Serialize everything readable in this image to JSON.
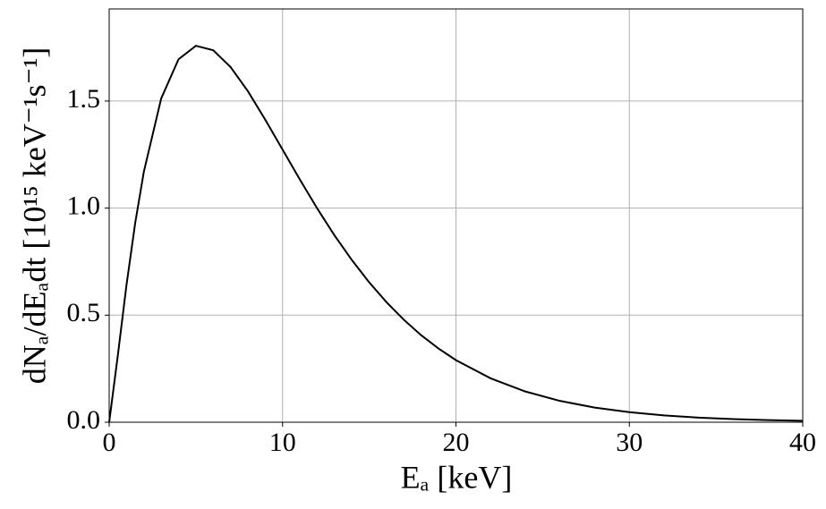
{
  "chart_data": {
    "type": "line",
    "xlabel": "Eₐ [keV]",
    "ylabel": "dNₐ/dEₐdt [10¹⁵ keV⁻¹s⁻¹]",
    "xlim": [
      0,
      40
    ],
    "xticks": [
      0,
      10,
      20,
      30,
      40
    ],
    "ylim": [
      0,
      1.93
    ],
    "yticks": [
      {
        "value": 0,
        "label": "0.0"
      },
      {
        "value": 0.5,
        "label": "0.5"
      },
      {
        "value": 1,
        "label": "1.0"
      },
      {
        "value": 1.5,
        "label": "1.5"
      }
    ],
    "grid": true,
    "x": [
      0,
      0.5,
      1,
      1.5,
      2,
      3,
      4,
      5,
      6,
      7,
      8,
      9,
      10,
      11,
      12,
      13,
      14,
      15,
      16,
      17,
      18,
      19,
      20,
      22,
      24,
      26,
      28,
      30,
      32,
      34,
      36,
      38,
      40
    ],
    "series": [
      {
        "color": "#000000",
        "values": [
          0,
          0.313,
          0.642,
          0.93,
          1.17,
          1.512,
          1.695,
          1.758,
          1.737,
          1.659,
          1.546,
          1.413,
          1.273,
          1.133,
          0.998,
          0.872,
          0.757,
          0.653,
          0.56,
          0.478,
          0.406,
          0.344,
          0.29,
          0.205,
          0.1436,
          0.0996,
          0.0686,
          0.0469,
          0.0319,
          0.0216,
          0.0146,
          0.0098,
          0.0066
        ]
      }
    ]
  }
}
